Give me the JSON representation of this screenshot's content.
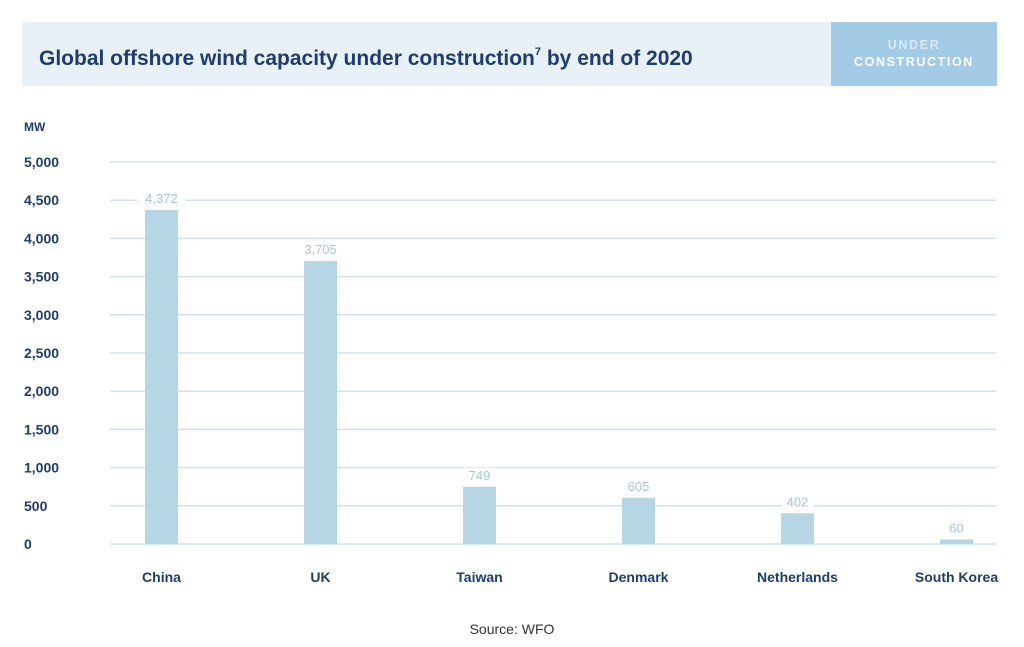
{
  "header": {
    "title": "Global offshore wind capacity under construction",
    "title_superscript": "7",
    "title_suffix": " by end of 2020",
    "badge_line1": "UNDER",
    "badge_line2": "CONSTRUCTION"
  },
  "source": "Source: WFO",
  "colors": {
    "bar": "#b7d6e5",
    "gridline": "#cfe3ef",
    "axis_text": "#1f3c6e",
    "data_label": "#a9c7da",
    "header_bg": "#e9f1f8",
    "badge_bg": "#a3cbe6"
  },
  "chart_data": {
    "type": "bar",
    "ylabel": "MW",
    "categories": [
      "China",
      "UK",
      "Taiwan",
      "Denmark",
      "Netherlands",
      "South Korea"
    ],
    "values": [
      4372,
      3705,
      749,
      605,
      402,
      60
    ],
    "value_labels": [
      "4,372",
      "3,705",
      "749",
      "605",
      "402",
      "60"
    ],
    "ylim": [
      0,
      5000
    ],
    "yticks": [
      0,
      500,
      1000,
      1500,
      2000,
      2500,
      3000,
      3500,
      4000,
      4500,
      5000
    ],
    "ytick_labels": [
      "0",
      "500",
      "1,000",
      "1,500",
      "2,000",
      "2,500",
      "3,000",
      "3,500",
      "4,000",
      "4,500",
      "5,000"
    ],
    "grid": true,
    "legend": "none"
  }
}
